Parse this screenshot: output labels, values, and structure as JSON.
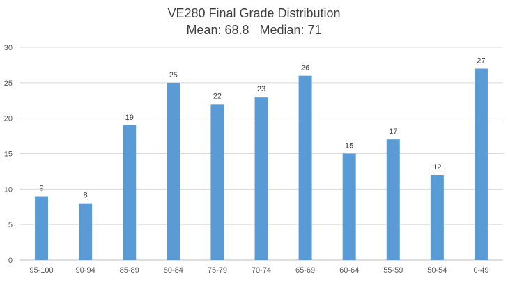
{
  "chart_data": {
    "type": "bar",
    "title": "VE280 Final Grade Distribution",
    "subtitle": "Mean: 68.8   Median: 71",
    "categories": [
      "95-100",
      "90-94",
      "85-89",
      "80-84",
      "75-79",
      "70-74",
      "65-69",
      "60-64",
      "55-59",
      "50-54",
      "0-49"
    ],
    "values": [
      9,
      8,
      19,
      25,
      22,
      23,
      26,
      15,
      17,
      12,
      27
    ],
    "ylim": [
      0,
      30
    ],
    "yticks": [
      0,
      5,
      10,
      15,
      20,
      25,
      30
    ],
    "grid": true,
    "bar_color": "#5b9bd5",
    "grid_color": "#d9d9d9",
    "axis_color": "#bfbfbf"
  }
}
